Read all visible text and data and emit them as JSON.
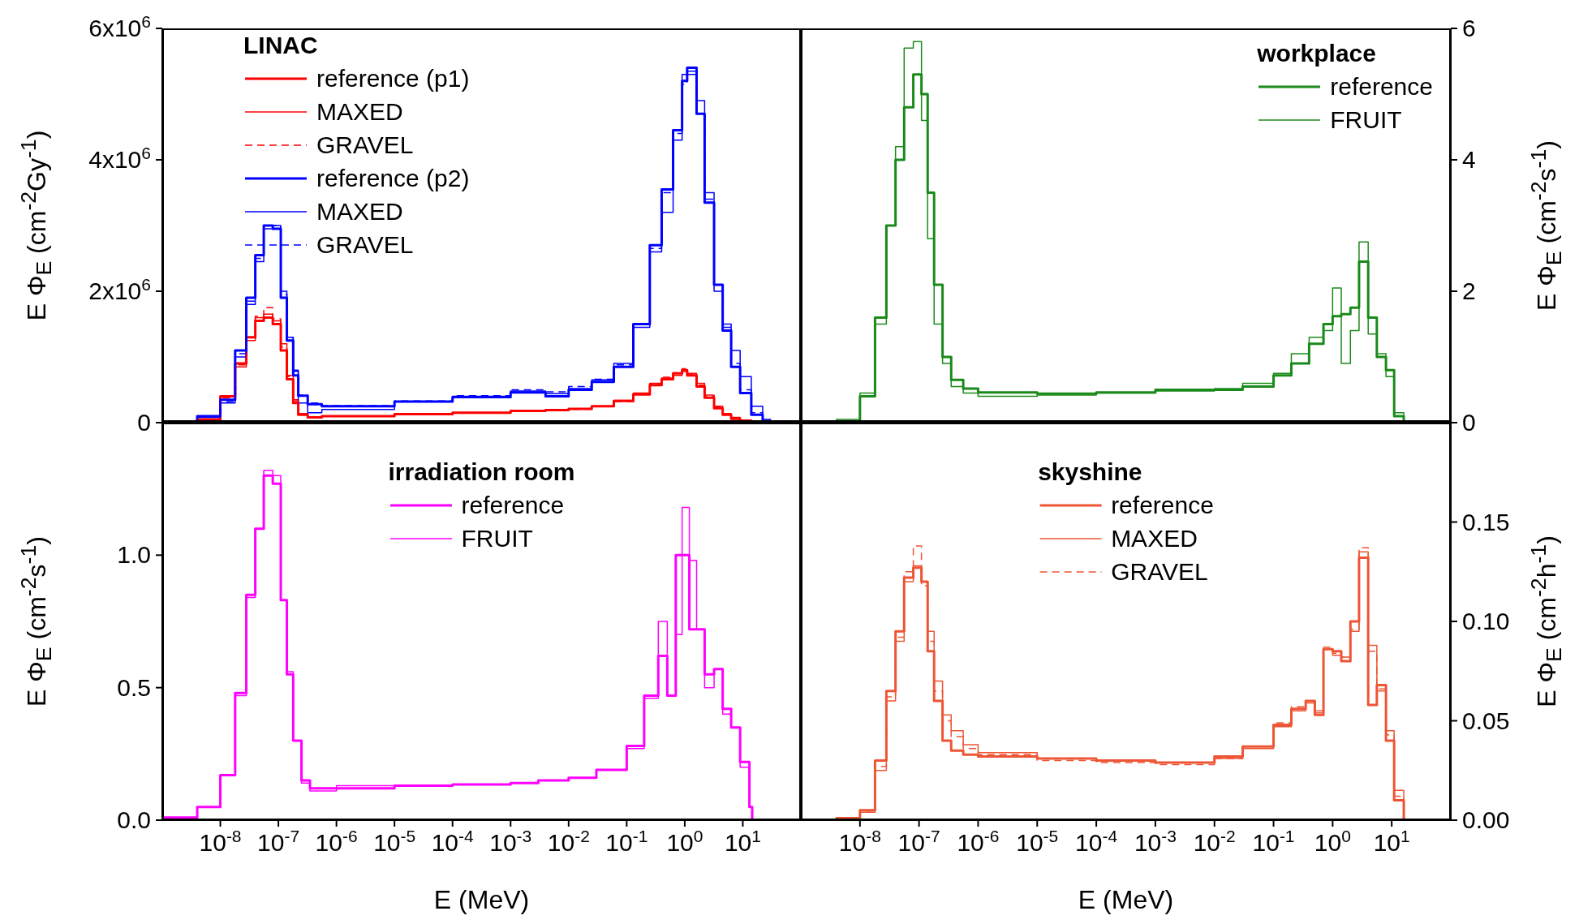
{
  "chart_data": [
    {
      "type": "step",
      "log": "x",
      "legend": "top left",
      "legend_title": "LINAC",
      "ylabel": "E Φ$_{E}$ (cm$^{-2}$Gy$^{-1}$)",
      "tick_labels": "y",
      "xlim": [
        1e-09,
        100
      ],
      "xticks": [
        {
          "value": 1e-08,
          "label": null
        },
        {
          "value": 1e-07,
          "label": null
        },
        {
          "value": 1e-06,
          "label": null
        },
        {
          "value": 1e-05,
          "label": null
        },
        {
          "value": 0.0001,
          "label": null
        },
        {
          "value": 0.001,
          "label": null
        },
        {
          "value": 0.01,
          "label": null
        },
        {
          "value": 0.1,
          "label": null
        },
        {
          "value": 1,
          "label": null
        },
        {
          "value": 10,
          "label": null
        }
      ],
      "ylim": [
        0,
        6000000
      ],
      "yticks": [
        0,
        {
          "value": 2000000,
          "label": "2x10$^{6}$"
        },
        {
          "value": 4000000,
          "label": "4x10$^{6}$"
        },
        {
          "value": 6000000,
          "label": "6x10$^{6}$"
        }
      ],
      "x": [
        1e-09,
        4e-09,
        1e-08,
        1.8e-08,
        2.8e-08,
        4e-08,
        5.6e-08,
        8e-08,
        1.1e-07,
        1.4e-07,
        1.8e-07,
        2.2e-07,
        3.2e-07,
        5.6e-07,
        1e-05,
        0.0001,
        0.001,
        0.004,
        0.01,
        0.025,
        0.06,
        0.13,
        0.25,
        0.4,
        0.63,
        0.9,
        1.1,
        1.6,
        2.2,
        3.2,
        4.5,
        6.3,
        9,
        14,
        22,
        30
      ],
      "series": [
        {
          "name": "reference (p1)",
          "color": "#ff0000",
          "line_style": "solid",
          "values": [
            0,
            50000,
            400000,
            900000,
            1300000,
            1550000,
            1600000,
            1500000,
            1100000,
            660000,
            300000,
            120000,
            80000,
            100000,
            130000,
            150000,
            180000,
            190000,
            210000,
            250000,
            330000,
            430000,
            570000,
            660000,
            750000,
            800000,
            720000,
            550000,
            380000,
            220000,
            120000,
            60000,
            30000,
            10000,
            0,
            0
          ]
        },
        {
          "name": "MAXED",
          "color": "#ff0000",
          "line_style": "solid",
          "values": [
            0,
            40000,
            350000,
            850000,
            1250000,
            1600000,
            1650000,
            1550000,
            1200000,
            720000,
            350000,
            140000,
            80000,
            100000,
            130000,
            150000,
            180000,
            190000,
            210000,
            250000,
            340000,
            450000,
            600000,
            680000,
            720000,
            780000,
            750000,
            600000,
            420000,
            250000,
            140000,
            80000,
            40000,
            10000,
            0,
            0
          ]
        },
        {
          "name": "GRAVEL",
          "color": "#ff0000",
          "line_style": "dashed",
          "values": [
            0,
            50000,
            380000,
            880000,
            1300000,
            1620000,
            1750000,
            1580000,
            1150000,
            700000,
            330000,
            130000,
            70000,
            95000,
            125000,
            145000,
            175000,
            185000,
            205000,
            245000,
            320000,
            440000,
            590000,
            690000,
            760000,
            820000,
            740000,
            570000,
            400000,
            240000,
            130000,
            70000,
            30000,
            10000,
            0,
            0
          ]
        },
        {
          "name": "reference (p2)",
          "color": "#0000ff",
          "line_style": "solid",
          "values": [
            0,
            100000,
            350000,
            1100000,
            1900000,
            2550000,
            3000000,
            2950000,
            1900000,
            1250000,
            720000,
            410000,
            280000,
            250000,
            320000,
            390000,
            460000,
            400000,
            500000,
            620000,
            850000,
            1500000,
            2700000,
            3550000,
            4450000,
            5200000,
            5400000,
            4700000,
            3350000,
            2100000,
            1400000,
            850000,
            450000,
            120000,
            20000,
            0
          ]
        },
        {
          "name": "MAXED",
          "color": "#0000ff",
          "line_style": "solid",
          "values": [
            0,
            80000,
            300000,
            1000000,
            1800000,
            2450000,
            2950000,
            3000000,
            2000000,
            1300000,
            800000,
            300000,
            150000,
            200000,
            320000,
            400000,
            480000,
            440000,
            520000,
            650000,
            900000,
            1450000,
            2600000,
            3200000,
            4300000,
            5300000,
            5300000,
            4900000,
            3500000,
            2000000,
            1500000,
            1100000,
            700000,
            250000,
            50000,
            0
          ]
        },
        {
          "name": "GRAVEL",
          "color": "#0000ff",
          "line_style": "dashed",
          "values": [
            0,
            90000,
            320000,
            1050000,
            1850000,
            2500000,
            3000000,
            3000000,
            1950000,
            1300000,
            780000,
            420000,
            300000,
            260000,
            330000,
            410000,
            500000,
            470000,
            550000,
            660000,
            880000,
            1500000,
            2650000,
            3500000,
            4400000,
            5150000,
            5350000,
            4700000,
            3400000,
            2100000,
            1450000,
            900000,
            500000,
            150000,
            30000,
            0
          ]
        }
      ]
    },
    {
      "type": "step",
      "log": "x",
      "legend": "top right",
      "legend_title": "workplace",
      "y2label": "E Φ$_{E}$ (cm$^{-2}$s$^{-1}$)",
      "tick_labels": "y",
      "xlim": [
        1e-09,
        100
      ],
      "xticks": [
        {
          "value": 1e-08,
          "label": null
        },
        {
          "value": 1e-07,
          "label": null
        },
        {
          "value": 1e-06,
          "label": null
        },
        {
          "value": 1e-05,
          "label": null
        },
        {
          "value": 0.0001,
          "label": null
        },
        {
          "value": 0.001,
          "label": null
        },
        {
          "value": 0.01,
          "label": null
        },
        {
          "value": 0.1,
          "label": null
        },
        {
          "value": 1,
          "label": null
        },
        {
          "value": 10,
          "label": null
        }
      ],
      "y2lim": [
        0,
        6
      ],
      "y2ticks": [
        0,
        2,
        4,
        6
      ],
      "x": [
        1e-09,
        4e-09,
        1e-08,
        1.8e-08,
        2.8e-08,
        4e-08,
        5.6e-08,
        8e-08,
        1.1e-07,
        1.4e-07,
        1.8e-07,
        2.5e-07,
        3.5e-07,
        5.6e-07,
        1e-06,
        1e-05,
        0.0001,
        0.001,
        0.01,
        0.03,
        0.1,
        0.2,
        0.4,
        0.7,
        1,
        1.4,
        2,
        2.8,
        4,
        5.6,
        8,
        11,
        16,
        20
      ],
      "series": [
        {
          "name": "reference",
          "color": "#1a8a1a",
          "line_style": "solid",
          "axis": "y2",
          "values": [
            0,
            0.02,
            0.4,
            1.6,
            3.0,
            4.0,
            4.8,
            5.3,
            5.0,
            3.5,
            2.1,
            1.0,
            0.65,
            0.52,
            0.46,
            0.44,
            0.46,
            0.5,
            0.5,
            0.55,
            0.72,
            0.9,
            1.2,
            1.5,
            1.62,
            1.65,
            1.75,
            2.45,
            1.6,
            1.0,
            0.8,
            0.1,
            0,
            0
          ]
        },
        {
          "name": "FRUIT",
          "color": "#1a8a1a",
          "line_style": "solid",
          "axis": "y2",
          "values": [
            0,
            0.05,
            0.45,
            1.5,
            3.0,
            4.2,
            5.7,
            5.8,
            4.6,
            2.8,
            1.5,
            0.9,
            0.55,
            0.45,
            0.4,
            0.42,
            0.45,
            0.48,
            0.52,
            0.6,
            0.75,
            1.05,
            1.3,
            1.4,
            2.05,
            0.9,
            1.4,
            2.75,
            1.35,
            1.05,
            0.7,
            0.15,
            0,
            0
          ]
        }
      ]
    },
    {
      "type": "step",
      "log": "x",
      "legend": "top",
      "legend_title": "irradiation room",
      "xlabel": "E (MeV)",
      "ylabel": "E Φ$_{E}$ (cm$^{-2}$s$^{-1}$)",
      "xlim": [
        1e-09,
        100
      ],
      "xticks": [
        {
          "value": 1e-08,
          "label": "10$^{-8}$"
        },
        {
          "value": 1e-07,
          "label": "10$^{-7}$"
        },
        {
          "value": 1e-06,
          "label": "10$^{-6}$"
        },
        {
          "value": 1e-05,
          "label": "10$^{-5}$"
        },
        {
          "value": 0.0001,
          "label": "10$^{-4}$"
        },
        {
          "value": 0.001,
          "label": "10$^{-3}$"
        },
        {
          "value": 0.01,
          "label": "10$^{-2}$"
        },
        {
          "value": 0.1,
          "label": "10$^{-1}$"
        },
        {
          "value": 1,
          "label": "10$^{0}$"
        },
        {
          "value": 10,
          "label": "10$^{1}$"
        }
      ],
      "ylim": [
        0,
        1.5
      ],
      "yticks": [
        {
          "value": 0,
          "label": "0.0"
        },
        0.5,
        {
          "value": 1,
          "label": "1.0"
        }
      ],
      "x": [
        1e-09,
        4e-09,
        1e-08,
        1.8e-08,
        2.8e-08,
        4e-08,
        5.6e-08,
        8e-08,
        1.1e-07,
        1.4e-07,
        1.8e-07,
        2.5e-07,
        3.5e-07,
        1e-06,
        1e-05,
        0.0001,
        0.001,
        0.003,
        0.01,
        0.03,
        0.1,
        0.2,
        0.35,
        0.5,
        0.7,
        0.9,
        1.2,
        1.6,
        2.2,
        3.2,
        4.5,
        6.3,
        9,
        13,
        14.5
      ],
      "series": [
        {
          "name": "reference",
          "color": "#ff00ff",
          "line_style": "solid",
          "values": [
            0.01,
            0.05,
            0.17,
            0.48,
            0.85,
            1.1,
            1.3,
            1.27,
            0.83,
            0.55,
            0.3,
            0.15,
            0.12,
            0.12,
            0.13,
            0.135,
            0.14,
            0.15,
            0.16,
            0.19,
            0.28,
            0.47,
            0.62,
            0.47,
            1.0,
            1.0,
            0.72,
            0.72,
            0.55,
            0.57,
            0.42,
            0.35,
            0.22,
            0.05,
            0
          ]
        },
        {
          "name": "FRUIT",
          "color": "#ff00ff",
          "line_style": "solid",
          "values": [
            0.01,
            0.05,
            0.17,
            0.47,
            0.84,
            1.1,
            1.32,
            1.3,
            0.83,
            0.56,
            0.3,
            0.14,
            0.11,
            0.13,
            0.13,
            0.135,
            0.14,
            0.15,
            0.16,
            0.19,
            0.27,
            0.46,
            0.75,
            0.47,
            0.7,
            1.18,
            0.98,
            0.72,
            0.5,
            0.57,
            0.4,
            0.35,
            0.2,
            0.05,
            0
          ]
        }
      ]
    },
    {
      "type": "step",
      "log": "x",
      "legend": "top",
      "legend_title": "skyshine",
      "xlabel": "E (MeV)",
      "y2label": "E Φ$_{E}$ (cm$^{-2}$h$^{-1}$)",
      "xlim": [
        1e-09,
        100
      ],
      "xticks": [
        {
          "value": 1e-08,
          "label": "10$^{-8}$"
        },
        {
          "value": 1e-07,
          "label": "10$^{-7}$"
        },
        {
          "value": 1e-06,
          "label": "10$^{-6}$"
        },
        {
          "value": 1e-05,
          "label": "10$^{-5}$"
        },
        {
          "value": 0.0001,
          "label": "10$^{-4}$"
        },
        {
          "value": 0.001,
          "label": "10$^{-3}$"
        },
        {
          "value": 0.01,
          "label": "10$^{-2}$"
        },
        {
          "value": 0.1,
          "label": "10$^{-1}$"
        },
        {
          "value": 1,
          "label": "10$^{0}$"
        },
        {
          "value": 10,
          "label": "10$^{1}$"
        }
      ],
      "y2lim": [
        0,
        0.2
      ],
      "y2ticks": [
        {
          "value": 0,
          "label": "0.00"
        },
        0.05,
        {
          "value": 0.1,
          "label": "0.10"
        },
        0.15
      ],
      "x": [
        1e-09,
        4e-09,
        1e-08,
        1.8e-08,
        2.8e-08,
        4e-08,
        5.6e-08,
        8e-08,
        1.1e-07,
        1.4e-07,
        1.8e-07,
        2.5e-07,
        3.5e-07,
        5.6e-07,
        1e-06,
        1e-05,
        0.0001,
        0.001,
        0.01,
        0.03,
        0.1,
        0.2,
        0.35,
        0.5,
        0.7,
        1,
        1.4,
        2,
        2.8,
        4,
        5.6,
        8,
        11,
        16,
        20
      ],
      "series": [
        {
          "name": "reference",
          "color": "#ee5535",
          "line_style": "solid",
          "axis": "y2",
          "values": [
            0,
            0.001,
            0.005,
            0.03,
            0.065,
            0.095,
            0.122,
            0.127,
            0.12,
            0.085,
            0.06,
            0.04,
            0.035,
            0.033,
            0.032,
            0.031,
            0.03,
            0.029,
            0.032,
            0.037,
            0.048,
            0.056,
            0.06,
            0.053,
            0.086,
            0.085,
            0.08,
            0.1,
            0.132,
            0.058,
            0.068,
            0.04,
            0.01,
            0,
            0
          ]
        },
        {
          "name": "MAXED",
          "color": "#ee5535",
          "line_style": "solid",
          "axis": "y2",
          "values": [
            0,
            0.001,
            0.004,
            0.025,
            0.06,
            0.09,
            0.12,
            0.128,
            0.12,
            0.095,
            0.07,
            0.053,
            0.045,
            0.038,
            0.034,
            0.031,
            0.03,
            0.029,
            0.031,
            0.036,
            0.047,
            0.055,
            0.059,
            0.055,
            0.086,
            0.083,
            0.082,
            0.095,
            0.135,
            0.088,
            0.065,
            0.045,
            0.015,
            0,
            0
          ]
        },
        {
          "name": "GRAVEL",
          "color": "#ee5535",
          "line_style": "dashed",
          "axis": "y2",
          "values": [
            0,
            0.001,
            0.004,
            0.027,
            0.062,
            0.092,
            0.125,
            0.138,
            0.118,
            0.09,
            0.065,
            0.05,
            0.042,
            0.036,
            0.033,
            0.03,
            0.029,
            0.028,
            0.031,
            0.037,
            0.049,
            0.057,
            0.06,
            0.054,
            0.087,
            0.084,
            0.082,
            0.096,
            0.137,
            0.085,
            0.066,
            0.043,
            0.012,
            0,
            0
          ]
        }
      ]
    }
  ]
}
